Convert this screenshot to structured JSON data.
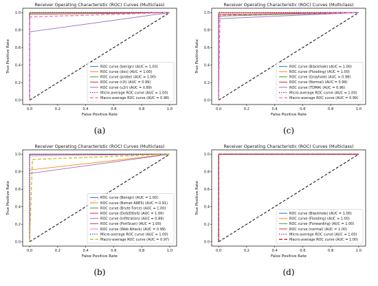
{
  "chart_data": [
    {
      "type": "line",
      "panel": "a",
      "caption": "(a)",
      "title": "Receiver Operating Characteristic (ROC) Curves (Multiclass)",
      "xlabel": "False Positive Rate",
      "ylabel": "True Positive Rate",
      "xlim": [
        0,
        1
      ],
      "ylim": [
        0,
        1
      ],
      "xticks": [
        "0.0",
        "0.2",
        "0.4",
        "0.6",
        "0.8",
        "1.0"
      ],
      "yticks": [
        "0.0",
        "0.2",
        "0.4",
        "0.6",
        "0.8",
        "1.0"
      ],
      "grid": false,
      "legend_position": "lower right",
      "series": [
        {
          "name": "ROC curve (benign) (AUC = 1.00)",
          "color": "#1f77b4",
          "dash": "solid",
          "x": [
            0,
            0,
            1
          ],
          "y": [
            0,
            1.0,
            1.0
          ]
        },
        {
          "name": "ROC curve (dos) (AUC = 1.00)",
          "color": "#ff7f0e",
          "dash": "solid",
          "x": [
            0,
            0,
            1
          ],
          "y": [
            0,
            0.999,
            1.0
          ]
        },
        {
          "name": "ROC curve (probe) (AUC = 1.00)",
          "color": "#2ca02c",
          "dash": "solid",
          "x": [
            0,
            0,
            1
          ],
          "y": [
            0,
            0.995,
            1.0
          ]
        },
        {
          "name": "ROC curve (r2l) (AUC = 0.99)",
          "color": "#d62728",
          "dash": "solid",
          "x": [
            0,
            0,
            1
          ],
          "y": [
            0,
            0.98,
            1.0
          ]
        },
        {
          "name": "ROC curve (u2r) (AUC = 0.89)",
          "color": "#9467bd",
          "dash": "solid",
          "x": [
            0,
            0,
            1
          ],
          "y": [
            0,
            0.78,
            1.0
          ]
        },
        {
          "name": "Micro-average ROC curve (AUC = 1.00)",
          "color": "#800080",
          "dash": "dotted",
          "x": [
            0,
            0,
            1
          ],
          "y": [
            0,
            0.999,
            1.0
          ]
        },
        {
          "name": "Macro-average ROC curve (AUC = 0.98)",
          "color": "#e377c2",
          "dash": "dashed",
          "x": [
            0,
            0,
            1
          ],
          "y": [
            0,
            0.95,
            1.0
          ]
        }
      ]
    },
    {
      "type": "line",
      "panel": "c",
      "caption": "(c)",
      "title": "Receiver Operating Characteristic (ROC) Curves (Multiclass)",
      "xlabel": "False Positive Rate",
      "ylabel": "True Positive Rate",
      "xlim": [
        0,
        1
      ],
      "ylim": [
        0,
        1
      ],
      "xticks": [
        "0.0",
        "0.2",
        "0.4",
        "0.6",
        "0.8",
        "1.0"
      ],
      "yticks": [
        "0.0",
        "0.2",
        "0.4",
        "0.6",
        "0.8",
        "1.0"
      ],
      "grid": false,
      "legend_position": "lower right",
      "series": [
        {
          "name": "ROC curve (Blackhole) (AUC = 1.00)",
          "color": "#1f77b4",
          "dash": "solid",
          "x": [
            0,
            0,
            1
          ],
          "y": [
            0,
            1.0,
            1.0
          ]
        },
        {
          "name": "ROC curve (Flooding) (AUC = 1.00)",
          "color": "#ff7f0e",
          "dash": "solid",
          "x": [
            0,
            0,
            1
          ],
          "y": [
            0,
            0.999,
            1.0
          ]
        },
        {
          "name": "ROC curve (Grayhole) (AUC = 0.98)",
          "color": "#2ca02c",
          "dash": "solid",
          "x": [
            0,
            0,
            1
          ],
          "y": [
            0,
            0.96,
            1.0
          ]
        },
        {
          "name": "ROC curve (Normal) (AUC = 0.99)",
          "color": "#d62728",
          "dash": "solid",
          "x": [
            0,
            0,
            1
          ],
          "y": [
            0,
            0.98,
            1.0
          ]
        },
        {
          "name": "ROC curve (TDMA) (AUC = 0.96)",
          "color": "#9467bd",
          "dash": "solid",
          "x": [
            0,
            0,
            1
          ],
          "y": [
            0,
            0.93,
            1.0
          ]
        },
        {
          "name": "Micro-average ROC curve (AUC = 1.00)",
          "color": "#800080",
          "dash": "dotted",
          "x": [
            0,
            0,
            1
          ],
          "y": [
            0,
            0.999,
            1.0
          ]
        },
        {
          "name": "Macro-average ROC curve (AUC = 0.99)",
          "color": "#e377c2",
          "dash": "dashed",
          "x": [
            0,
            0.01,
            1
          ],
          "y": [
            0,
            0.97,
            1.0
          ]
        }
      ]
    },
    {
      "type": "line",
      "panel": "b",
      "caption": "(b)",
      "title": "Receiver Operating Characteristic (ROC) Curves (Multiclass)",
      "xlabel": "False Positive Rate",
      "ylabel": "True Positive Rate",
      "xlim": [
        0,
        1
      ],
      "ylim": [
        0,
        1
      ],
      "xticks": [
        "0.0",
        "0.2",
        "0.4",
        "0.6",
        "0.8",
        "1.0"
      ],
      "yticks": [
        "0.0",
        "0.2",
        "0.4",
        "0.6",
        "0.8",
        "1.0"
      ],
      "grid": false,
      "legend_position": "lower right",
      "series": [
        {
          "name": "ROC curve (Benign) (AUC = 1.00)",
          "color": "#1f77b4",
          "dash": "solid",
          "x": [
            0,
            0,
            1
          ],
          "y": [
            0,
            1.0,
            1.0
          ]
        },
        {
          "name": "ROC curve (Botnet ARES) (AUC = 0.91)",
          "color": "#ff7f0e",
          "dash": "solid",
          "x": [
            0,
            0,
            1
          ],
          "y": [
            0,
            0.82,
            1.0
          ]
        },
        {
          "name": "ROC curve (Brute Force) (AUC = 1.00)",
          "color": "#2ca02c",
          "dash": "solid",
          "x": [
            0,
            0,
            1
          ],
          "y": [
            0,
            0.999,
            1.0
          ]
        },
        {
          "name": "ROC curve (DoS/DDoS) (AUC = 1.00)",
          "color": "#d62728",
          "dash": "solid",
          "x": [
            0,
            0,
            1
          ],
          "y": [
            0,
            0.998,
            1.0
          ]
        },
        {
          "name": "ROC curve (Infiltration) (AUC = 0.89)",
          "color": "#9467bd",
          "dash": "solid",
          "x": [
            0,
            0,
            1
          ],
          "y": [
            0,
            0.78,
            1.0
          ]
        },
        {
          "name": "ROC curve (PortScan) (AUC = 1.00)",
          "color": "#8c564b",
          "dash": "solid",
          "x": [
            0,
            0,
            1
          ],
          "y": [
            0,
            0.997,
            1.0
          ]
        },
        {
          "name": "ROC curve (Web Attack) (AUC = 0.99)",
          "color": "#e377c2",
          "dash": "solid",
          "x": [
            0,
            0,
            1
          ],
          "y": [
            0,
            0.98,
            1.0
          ]
        },
        {
          "name": "Micro-average ROC curve (AUC = 1.00)",
          "color": "#1f3a93",
          "dash": "dotted",
          "x": [
            0,
            0,
            1
          ],
          "y": [
            0,
            0.999,
            1.0
          ]
        },
        {
          "name": "Macro-average ROC curve (AUC = 0.97)",
          "color": "#bcbd22",
          "dash": "dashed",
          "x": [
            0,
            0.02,
            1
          ],
          "y": [
            0,
            0.94,
            1.0
          ]
        }
      ]
    },
    {
      "type": "line",
      "panel": "d",
      "caption": "(d)",
      "title": "Receiver Operating Characteristic (ROC) Curves (Multiclass)",
      "xlabel": "False Positive Rate",
      "ylabel": "True Positive Rate",
      "xlim": [
        0,
        1
      ],
      "ylim": [
        0,
        1
      ],
      "xticks": [
        "0.0",
        "0.2",
        "0.4",
        "0.6",
        "0.8",
        "1.0"
      ],
      "yticks": [
        "0.0",
        "0.2",
        "0.4",
        "0.6",
        "0.8",
        "1.0"
      ],
      "grid": false,
      "legend_position": "lower right",
      "series": [
        {
          "name": "ROC curve (Blackhole) (AUC = 1.00)",
          "color": "#1f77b4",
          "dash": "solid",
          "x": [
            0,
            0,
            1
          ],
          "y": [
            0,
            1.0,
            1.0
          ]
        },
        {
          "name": "ROC curve (Flooding) (AUC = 1.00)",
          "color": "#ff7f0e",
          "dash": "solid",
          "x": [
            0,
            0,
            1
          ],
          "y": [
            0,
            1.0,
            1.0
          ]
        },
        {
          "name": "ROC curve (Forwarding) (AUC = 1.00)",
          "color": "#2ca02c",
          "dash": "solid",
          "x": [
            0,
            0,
            1
          ],
          "y": [
            0,
            1.0,
            1.0
          ]
        },
        {
          "name": "ROC curve (normal) (AUC = 1.00)",
          "color": "#d62728",
          "dash": "solid",
          "x": [
            0,
            0,
            1
          ],
          "y": [
            0,
            1.0,
            1.0
          ]
        },
        {
          "name": "Micro-average ROC curve (AUC = 1.00)",
          "color": "#800080",
          "dash": "dotted",
          "x": [
            0,
            0,
            1
          ],
          "y": [
            0,
            1.0,
            1.0
          ]
        },
        {
          "name": "Macro-average ROC curve (AUC = 1.00)",
          "color": "#b22222",
          "dash": "dashed",
          "x": [
            0,
            0,
            1
          ],
          "y": [
            0,
            1.0,
            1.0
          ]
        }
      ]
    }
  ]
}
